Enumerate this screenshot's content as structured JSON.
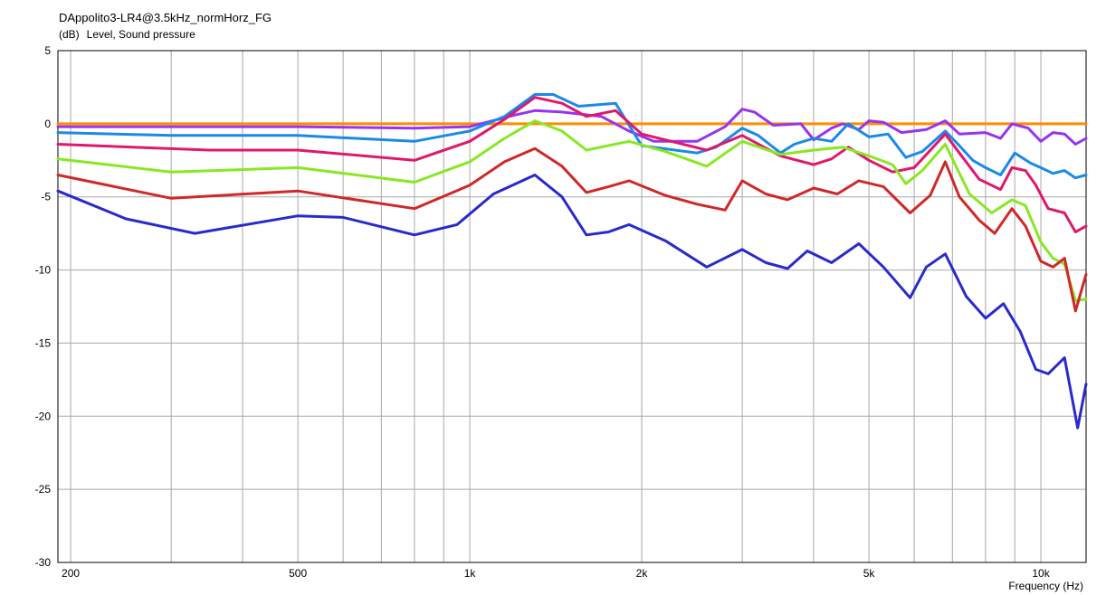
{
  "chart_data": {
    "type": "line",
    "title": "DAppolito3-LR4@3.5kHz_normHorz_FG",
    "ylabel": "Level, Sound pressure",
    "yunit": "(dB)",
    "xlabel": "Frequency",
    "xunit": "(Hz)",
    "xscale": "log",
    "xlim": [
      190,
      12000
    ],
    "ylim": [
      -30,
      5
    ],
    "grid": true,
    "legend": "none",
    "x_ticks": [
      200,
      500,
      1000,
      2000,
      5000,
      10000
    ],
    "x_tick_labels": [
      "200",
      "500",
      "1k",
      "2k",
      "5k",
      "10k"
    ],
    "y_ticks": [
      5,
      0,
      -5,
      -10,
      -15,
      -20,
      -25,
      -30
    ],
    "y_tick_labels": [
      "5",
      "0",
      "-5",
      "-10",
      "-15",
      "-20",
      "-25",
      "-30"
    ],
    "series": [
      {
        "color": "#ff8c00",
        "points": [
          [
            190,
            0
          ],
          [
            12000,
            0
          ]
        ]
      },
      {
        "color": "#9933ee",
        "points": [
          [
            190,
            -0.2
          ],
          [
            500,
            -0.2
          ],
          [
            800,
            -0.3
          ],
          [
            1000,
            -0.2
          ],
          [
            1200,
            0.6
          ],
          [
            1300,
            0.9
          ],
          [
            1450,
            0.8
          ],
          [
            1700,
            0.5
          ],
          [
            1900,
            -0.5
          ],
          [
            2100,
            -1.2
          ],
          [
            2500,
            -1.2
          ],
          [
            2800,
            -0.2
          ],
          [
            3000,
            1.0
          ],
          [
            3150,
            0.8
          ],
          [
            3400,
            -0.1
          ],
          [
            3800,
            0.0
          ],
          [
            4000,
            -1.1
          ],
          [
            4300,
            -0.3
          ],
          [
            4500,
            0.0
          ],
          [
            4800,
            -0.4
          ],
          [
            5000,
            0.2
          ],
          [
            5300,
            0.1
          ],
          [
            5700,
            -0.6
          ],
          [
            6300,
            -0.4
          ],
          [
            6800,
            0.2
          ],
          [
            7200,
            -0.7
          ],
          [
            8000,
            -0.6
          ],
          [
            8500,
            -1.0
          ],
          [
            8900,
            0.0
          ],
          [
            9500,
            -0.3
          ],
          [
            10000,
            -1.2
          ],
          [
            10500,
            -0.6
          ],
          [
            11000,
            -0.7
          ],
          [
            11500,
            -1.4
          ],
          [
            12000,
            -1.0
          ]
        ]
      },
      {
        "color": "#1a8ae8",
        "points": [
          [
            190,
            -0.6
          ],
          [
            300,
            -0.8
          ],
          [
            500,
            -0.8
          ],
          [
            800,
            -1.2
          ],
          [
            1000,
            -0.5
          ],
          [
            1150,
            0.5
          ],
          [
            1300,
            2.0
          ],
          [
            1400,
            2.0
          ],
          [
            1550,
            1.2
          ],
          [
            1800,
            1.4
          ],
          [
            2000,
            -1.5
          ],
          [
            2500,
            -2.0
          ],
          [
            2700,
            -1.6
          ],
          [
            3000,
            -0.3
          ],
          [
            3200,
            -0.8
          ],
          [
            3500,
            -2.0
          ],
          [
            3700,
            -1.4
          ],
          [
            4000,
            -1.0
          ],
          [
            4300,
            -1.2
          ],
          [
            4600,
            0.0
          ],
          [
            5000,
            -0.9
          ],
          [
            5400,
            -0.7
          ],
          [
            5800,
            -2.3
          ],
          [
            6200,
            -1.9
          ],
          [
            6800,
            -0.5
          ],
          [
            7200,
            -1.5
          ],
          [
            7600,
            -2.5
          ],
          [
            8000,
            -3.0
          ],
          [
            8500,
            -3.5
          ],
          [
            9000,
            -2.0
          ],
          [
            9600,
            -2.7
          ],
          [
            10000,
            -3.0
          ],
          [
            10500,
            -3.4
          ],
          [
            11000,
            -3.2
          ],
          [
            11500,
            -3.7
          ],
          [
            12000,
            -3.5
          ]
        ]
      },
      {
        "color": "#e0186c",
        "points": [
          [
            190,
            -1.4
          ],
          [
            350,
            -1.8
          ],
          [
            500,
            -1.8
          ],
          [
            800,
            -2.5
          ],
          [
            1000,
            -1.2
          ],
          [
            1150,
            0.3
          ],
          [
            1300,
            1.8
          ],
          [
            1450,
            1.4
          ],
          [
            1600,
            0.5
          ],
          [
            1800,
            0.9
          ],
          [
            2000,
            -0.7
          ],
          [
            2600,
            -1.8
          ],
          [
            3000,
            -0.8
          ],
          [
            3500,
            -2.2
          ],
          [
            4000,
            -2.8
          ],
          [
            4300,
            -2.4
          ],
          [
            4600,
            -1.6
          ],
          [
            5000,
            -2.5
          ],
          [
            5500,
            -3.3
          ],
          [
            6000,
            -3.0
          ],
          [
            6800,
            -0.7
          ],
          [
            7200,
            -2.0
          ],
          [
            7800,
            -3.8
          ],
          [
            8500,
            -4.5
          ],
          [
            8900,
            -3.0
          ],
          [
            9400,
            -3.2
          ],
          [
            9800,
            -4.2
          ],
          [
            10300,
            -5.8
          ],
          [
            11000,
            -6.1
          ],
          [
            11500,
            -7.4
          ],
          [
            12000,
            -7.0
          ]
        ]
      },
      {
        "color": "#88e822",
        "points": [
          [
            190,
            -2.4
          ],
          [
            300,
            -3.3
          ],
          [
            500,
            -3.0
          ],
          [
            800,
            -4.0
          ],
          [
            1000,
            -2.6
          ],
          [
            1150,
            -1.0
          ],
          [
            1300,
            0.2
          ],
          [
            1450,
            -0.5
          ],
          [
            1600,
            -1.8
          ],
          [
            1900,
            -1.2
          ],
          [
            2200,
            -1.9
          ],
          [
            2600,
            -2.9
          ],
          [
            3000,
            -1.2
          ],
          [
            3500,
            -2.1
          ],
          [
            4000,
            -1.8
          ],
          [
            4500,
            -1.6
          ],
          [
            5000,
            -2.2
          ],
          [
            5500,
            -2.8
          ],
          [
            5800,
            -4.1
          ],
          [
            6200,
            -3.2
          ],
          [
            6800,
            -1.4
          ],
          [
            7500,
            -4.8
          ],
          [
            8200,
            -6.1
          ],
          [
            8900,
            -5.2
          ],
          [
            9400,
            -5.6
          ],
          [
            10000,
            -8.1
          ],
          [
            10500,
            -9.2
          ],
          [
            11000,
            -9.6
          ],
          [
            11500,
            -12.1
          ],
          [
            12000,
            -12.0
          ]
        ]
      },
      {
        "color": "#d02828",
        "points": [
          [
            190,
            -3.5
          ],
          [
            300,
            -5.1
          ],
          [
            500,
            -4.6
          ],
          [
            800,
            -5.8
          ],
          [
            1000,
            -4.2
          ],
          [
            1150,
            -2.6
          ],
          [
            1300,
            -1.7
          ],
          [
            1450,
            -2.9
          ],
          [
            1600,
            -4.7
          ],
          [
            1750,
            -4.3
          ],
          [
            1900,
            -3.9
          ],
          [
            2200,
            -4.9
          ],
          [
            2500,
            -5.5
          ],
          [
            2800,
            -5.9
          ],
          [
            3000,
            -3.9
          ],
          [
            3300,
            -4.8
          ],
          [
            3600,
            -5.2
          ],
          [
            4000,
            -4.4
          ],
          [
            4400,
            -4.8
          ],
          [
            4800,
            -3.9
          ],
          [
            5300,
            -4.3
          ],
          [
            5900,
            -6.1
          ],
          [
            6400,
            -4.9
          ],
          [
            6800,
            -2.6
          ],
          [
            7200,
            -5.0
          ],
          [
            7800,
            -6.6
          ],
          [
            8300,
            -7.5
          ],
          [
            8900,
            -5.8
          ],
          [
            9400,
            -7.0
          ],
          [
            10000,
            -9.4
          ],
          [
            10500,
            -9.8
          ],
          [
            11000,
            -9.2
          ],
          [
            11500,
            -12.8
          ],
          [
            12000,
            -10.3
          ]
        ]
      },
      {
        "color": "#2a2acc",
        "points": [
          [
            190,
            -4.6
          ],
          [
            250,
            -6.5
          ],
          [
            330,
            -7.5
          ],
          [
            500,
            -6.3
          ],
          [
            600,
            -6.4
          ],
          [
            800,
            -7.6
          ],
          [
            950,
            -6.9
          ],
          [
            1100,
            -4.8
          ],
          [
            1300,
            -3.5
          ],
          [
            1450,
            -5.0
          ],
          [
            1600,
            -7.6
          ],
          [
            1750,
            -7.4
          ],
          [
            1900,
            -6.9
          ],
          [
            2200,
            -8.0
          ],
          [
            2600,
            -9.8
          ],
          [
            3000,
            -8.6
          ],
          [
            3300,
            -9.5
          ],
          [
            3600,
            -9.9
          ],
          [
            3900,
            -8.7
          ],
          [
            4300,
            -9.5
          ],
          [
            4800,
            -8.2
          ],
          [
            5300,
            -9.8
          ],
          [
            5900,
            -11.9
          ],
          [
            6300,
            -9.8
          ],
          [
            6800,
            -8.9
          ],
          [
            7400,
            -11.8
          ],
          [
            8000,
            -13.3
          ],
          [
            8600,
            -12.3
          ],
          [
            9200,
            -14.2
          ],
          [
            9800,
            -16.8
          ],
          [
            10300,
            -17.1
          ],
          [
            11000,
            -16.0
          ],
          [
            11600,
            -20.8
          ],
          [
            12000,
            -17.8
          ]
        ]
      }
    ]
  }
}
